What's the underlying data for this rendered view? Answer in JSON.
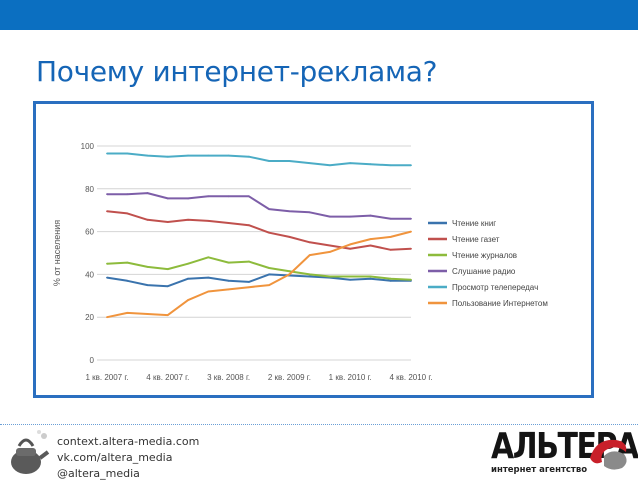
{
  "slide": {
    "title": "Почему интернет-реклама?"
  },
  "footer": {
    "contacts": [
      "context.altera-media.com",
      "vk.com/altera_media",
      "@altera_media"
    ],
    "logo_word": "АЛЬТЕРА",
    "logo_sub": "интернет агентство"
  },
  "colors": {
    "topbar": "#0b6fc1",
    "title": "#1565b6",
    "frame": "#2a6fc0"
  },
  "chart_data": {
    "type": "line",
    "xlabel": "",
    "ylabel": "% от населения",
    "ylim": [
      0,
      100
    ],
    "yticks": [
      0,
      20,
      40,
      60,
      80,
      100
    ],
    "x": [
      "1 кв. 2007 г.",
      "2 кв. 2007 г.",
      "3 кв. 2007 г.",
      "4 кв. 2007 г.",
      "1 кв. 2008 г.",
      "2 кв. 2008 г.",
      "3 кв. 2008 г.",
      "4 кв. 2008 г.",
      "1 кв. 2009 г.",
      "2 кв. 2009 г.",
      "3 кв. 2009 г.",
      "4 кв. 2009 г.",
      "1 кв. 2010 г.",
      "2 кв. 2010 г.",
      "3 кв. 2010 г.",
      "4 кв. 2010 г."
    ],
    "xticks": [
      "1 кв. 2007 г.",
      "4 кв. 2007 г.",
      "3 кв. 2008 г.",
      "2 кв. 2009 г.",
      "1 кв. 2010 г.",
      "4 кв. 2010 г."
    ],
    "xtick_index": [
      0,
      3,
      6,
      9,
      12,
      15
    ],
    "grid": true,
    "legend_position": "right",
    "series": [
      {
        "name": "Чтение книг",
        "color": "#3a73ad",
        "values": [
          38.5,
          37,
          35,
          34.5,
          38,
          38.5,
          37,
          36.5,
          40,
          39.5,
          39,
          38.5,
          37.5,
          38,
          37,
          37
        ]
      },
      {
        "name": "Чтение газет",
        "color": "#c0504d",
        "values": [
          69.5,
          68.5,
          65.5,
          64.5,
          65.5,
          65,
          64,
          63,
          59.5,
          57.5,
          55,
          53.5,
          52,
          53.5,
          51.5,
          52
        ]
      },
      {
        "name": "Чтение журналов",
        "color": "#8dbb3c",
        "values": [
          45,
          45.5,
          43.5,
          42.5,
          45,
          48,
          45.5,
          46,
          43,
          41.5,
          40,
          39,
          39,
          39,
          38,
          37.5
        ]
      },
      {
        "name": "Слушание радио",
        "color": "#7d5ea8",
        "values": [
          77.5,
          77.5,
          78,
          75.5,
          75.5,
          76.5,
          76.5,
          76.5,
          70.5,
          69.5,
          69,
          67,
          67,
          67.5,
          66,
          66
        ]
      },
      {
        "name": "Просмотр телепередач",
        "color": "#4bacc6",
        "values": [
          96.5,
          96.5,
          95.5,
          95,
          95.5,
          95.5,
          95.5,
          95,
          93,
          93,
          92,
          91,
          92,
          91.5,
          91,
          91
        ]
      },
      {
        "name": "Пользование Интернетом",
        "color": "#f0943d",
        "values": [
          20,
          22,
          21.5,
          21,
          28,
          32,
          33,
          34,
          35,
          40,
          49,
          50.5,
          54,
          56.5,
          57.5,
          60
        ]
      }
    ]
  }
}
